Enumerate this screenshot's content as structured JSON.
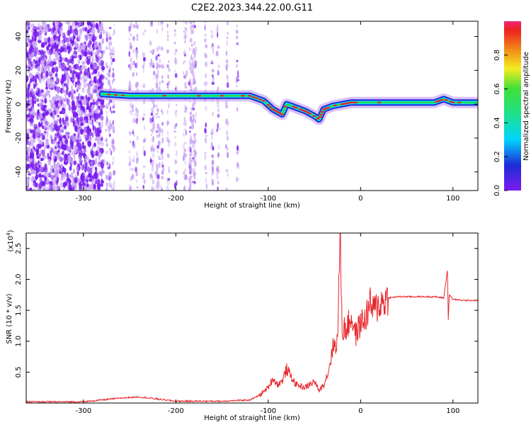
{
  "title": "C2E2.2023.344.22.00.G11",
  "colors": {
    "snr_line": "#e8262a",
    "noise": "#7a1cf0",
    "noise_light": "#c9a6f5",
    "trace_outer": "#1f2bd6",
    "trace_inner": "#00e5ff",
    "trace_core": "#28d94a",
    "trace_peak": "#e8262a"
  },
  "chart_data": [
    {
      "type": "heatmap",
      "xlabel": "Height of straight line (km)",
      "ylabel": "Frequency (Hz)",
      "xlim": [
        -362,
        127
      ],
      "ylim": [
        -51,
        49
      ],
      "xticks": [
        -300,
        -200,
        -100,
        0,
        100
      ],
      "yticks": [
        -40,
        -20,
        0,
        20,
        40
      ],
      "colorbar": {
        "label": "Normalized spectral amplitude",
        "range": [
          0.0,
          1.0
        ],
        "ticks": [
          "0.0",
          "0.2",
          "0.4",
          "0.6",
          "0.8"
        ],
        "scale": "rainbow"
      },
      "signal_trace": {
        "x": [
          -280,
          -250,
          -200,
          -150,
          -120,
          -105,
          -95,
          -85,
          -80,
          -70,
          -60,
          -50,
          -45,
          -40,
          -30,
          -20,
          -10,
          0,
          20,
          50,
          80,
          90,
          100,
          127
        ],
        "y": [
          6,
          5,
          5,
          5,
          5,
          2,
          -3,
          -6,
          0,
          -2,
          -4,
          -7,
          -9,
          -3,
          -1,
          0,
          1,
          1,
          1,
          1,
          1,
          3,
          1,
          1
        ]
      },
      "noise_region": {
        "x_from": -362,
        "x_to": -130
      },
      "dense_noise_region": {
        "x_from": -362,
        "x_to": -278
      },
      "grid": false
    },
    {
      "type": "line",
      "xlabel": "Height of straight line (km)",
      "ylabel": "SNR (10 * v/v)",
      "multiplier": "(x10",
      "multiplier_exp": "4",
      "multiplier_close": ")",
      "xlim": [
        -362,
        127
      ],
      "ylim": [
        0,
        2.75
      ],
      "xticks": [
        -300,
        -200,
        -100,
        0,
        100
      ],
      "yticks": [
        0.5,
        1.0,
        1.5,
        2.0,
        2.5
      ],
      "ytick_labels": [
        "0.5",
        "1.0",
        "1.5",
        "2.0",
        "2.5"
      ],
      "series": [
        {
          "x": [
            -362,
            -300,
            -260,
            -240,
            -200,
            -150,
            -120,
            -110,
            -100,
            -95,
            -90,
            -85,
            -80,
            -70,
            -60,
            -50,
            -45,
            -40,
            -35,
            -30,
            -25,
            -22,
            -20,
            -15,
            -10,
            -5,
            0,
            5,
            10,
            15,
            20,
            25,
            30,
            40,
            60,
            80,
            90,
            94,
            95,
            96,
            100,
            110,
            127
          ],
          "y": [
            0.02,
            0.02,
            0.08,
            0.1,
            0.03,
            0.03,
            0.05,
            0.12,
            0.25,
            0.4,
            0.3,
            0.35,
            0.55,
            0.3,
            0.25,
            0.35,
            0.2,
            0.3,
            0.5,
            0.9,
            1.0,
            2.75,
            1.2,
            1.2,
            1.4,
            1.1,
            1.3,
            1.35,
            1.6,
            1.5,
            1.6,
            1.65,
            1.7,
            1.72,
            1.72,
            1.72,
            1.7,
            2.15,
            1.35,
            1.75,
            1.68,
            1.66,
            1.66
          ]
        }
      ],
      "grid": false
    }
  ]
}
